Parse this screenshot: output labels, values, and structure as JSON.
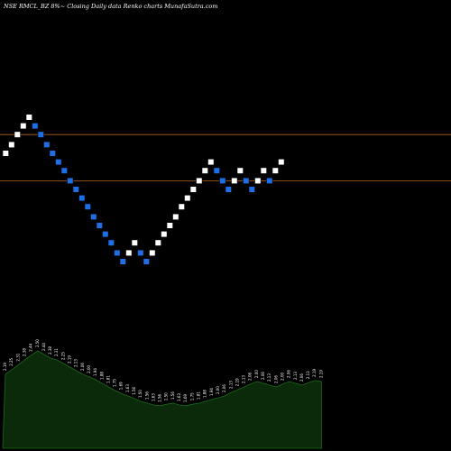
{
  "chart_data": {
    "type": "renko",
    "title": "NSE RMCL_BZ 8%~  Closing Daily data  Renko  charts MunafaSutra.com",
    "colors": {
      "background": "#000000",
      "up_brick": "#ffffff",
      "down_brick": "#1e6ee6",
      "brick_border": "#000000",
      "reference_line": "#b5651d",
      "volume_fill": "#0a2a0a",
      "volume_stroke": "#1c6b1c",
      "label": "#ffffff"
    },
    "price_axis": {
      "min": 1.25,
      "max": 2.75
    },
    "reference_lines": [
      2.38,
      2.06
    ],
    "bricks": [
      {
        "dir": "up",
        "value": 2.25
      },
      {
        "dir": "up",
        "value": 2.31
      },
      {
        "dir": "up",
        "value": 2.38
      },
      {
        "dir": "up",
        "value": 2.44
      },
      {
        "dir": "up",
        "value": 2.5
      },
      {
        "dir": "down",
        "value": 2.44
      },
      {
        "dir": "down",
        "value": 2.38
      },
      {
        "dir": "down",
        "value": 2.31
      },
      {
        "dir": "down",
        "value": 2.25
      },
      {
        "dir": "down",
        "value": 2.19
      },
      {
        "dir": "down",
        "value": 2.13
      },
      {
        "dir": "down",
        "value": 2.06
      },
      {
        "dir": "down",
        "value": 2.0
      },
      {
        "dir": "down",
        "value": 1.94
      },
      {
        "dir": "down",
        "value": 1.88
      },
      {
        "dir": "down",
        "value": 1.81
      },
      {
        "dir": "down",
        "value": 1.75
      },
      {
        "dir": "down",
        "value": 1.69
      },
      {
        "dir": "down",
        "value": 1.63
      },
      {
        "dir": "down",
        "value": 1.56
      },
      {
        "dir": "down",
        "value": 1.5
      },
      {
        "dir": "up",
        "value": 1.56
      },
      {
        "dir": "up",
        "value": 1.63
      },
      {
        "dir": "down",
        "value": 1.56
      },
      {
        "dir": "down",
        "value": 1.5
      },
      {
        "dir": "up",
        "value": 1.56
      },
      {
        "dir": "up",
        "value": 1.63
      },
      {
        "dir": "up",
        "value": 1.69
      },
      {
        "dir": "up",
        "value": 1.75
      },
      {
        "dir": "up",
        "value": 1.81
      },
      {
        "dir": "up",
        "value": 1.88
      },
      {
        "dir": "up",
        "value": 1.94
      },
      {
        "dir": "up",
        "value": 2.0
      },
      {
        "dir": "up",
        "value": 2.06
      },
      {
        "dir": "up",
        "value": 2.13
      },
      {
        "dir": "up",
        "value": 2.19
      },
      {
        "dir": "down",
        "value": 2.13
      },
      {
        "dir": "down",
        "value": 2.06
      },
      {
        "dir": "down",
        "value": 2.0
      },
      {
        "dir": "up",
        "value": 2.06
      },
      {
        "dir": "up",
        "value": 2.13
      },
      {
        "dir": "down",
        "value": 2.06
      },
      {
        "dir": "down",
        "value": 2.0
      },
      {
        "dir": "up",
        "value": 2.06
      },
      {
        "dir": "up",
        "value": 2.13
      },
      {
        "dir": "down",
        "value": 2.06
      },
      {
        "dir": "up",
        "value": 2.13
      },
      {
        "dir": "up",
        "value": 2.19
      }
    ],
    "volume": {
      "values": [
        2.05,
        2.18,
        2.31,
        2.45,
        2.58,
        2.7,
        2.6,
        2.5,
        2.45,
        2.35,
        2.25,
        2.15,
        2.05,
        1.98,
        1.9,
        1.8,
        1.7,
        1.6,
        1.52,
        1.45,
        1.38,
        1.3,
        1.25,
        1.2,
        1.18,
        1.22,
        1.25,
        1.2,
        1.18,
        1.22,
        1.25,
        1.3,
        1.35,
        1.4,
        1.45,
        1.55,
        1.62,
        1.7,
        1.78,
        1.85,
        1.8,
        1.75,
        1.7,
        1.78,
        1.85,
        1.8,
        1.75,
        1.82,
        1.88,
        1.85
      ],
      "labels": [
        "2.19",
        "2.25",
        "2.31",
        "2.38",
        "2.44",
        "2.50",
        "2.44",
        "2.38",
        "2.31",
        "2.25",
        "2.19",
        "2.13",
        "2.06",
        "2.00",
        "1.94",
        "1.88",
        "1.81",
        "1.75",
        "1.69",
        "1.63",
        "1.56",
        "1.50",
        "1.56",
        "1.63",
        "1.56",
        "1.50",
        "1.56",
        "1.63",
        "1.69",
        "1.75",
        "1.81",
        "1.88",
        "1.94",
        "2.00",
        "2.06",
        "2.13",
        "2.19",
        "2.13",
        "2.06",
        "2.00",
        "2.06",
        "2.13",
        "2.06",
        "2.00",
        "2.06",
        "2.13",
        "2.06",
        "2.13",
        "2.19",
        "2.19"
      ]
    }
  }
}
